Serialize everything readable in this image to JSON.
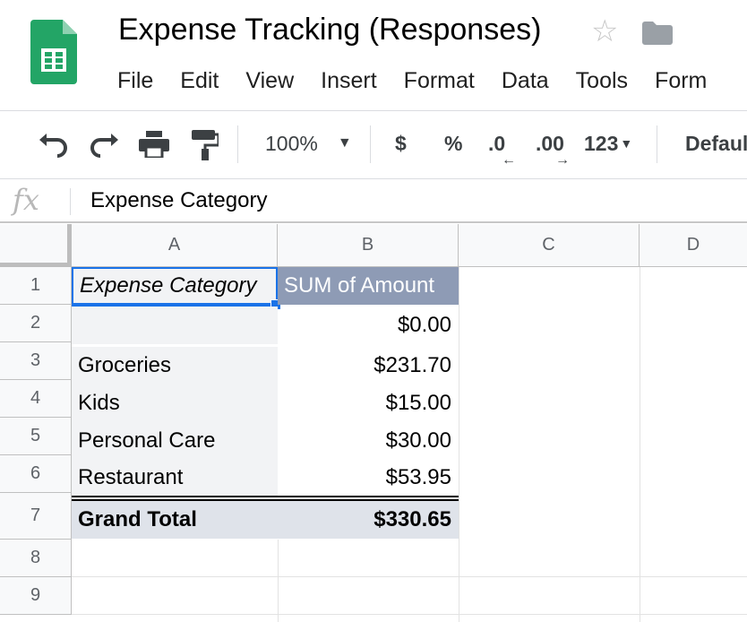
{
  "doc": {
    "title": "Expense Tracking (Responses)"
  },
  "menu": [
    "File",
    "Edit",
    "View",
    "Insert",
    "Format",
    "Data",
    "Tools",
    "Form"
  ],
  "toolbar": {
    "zoom": "100%",
    "currency": "$",
    "percent": "%",
    "dec_decrease": ".0",
    "dec_increase": ".00",
    "more_formats": "123",
    "font": "Default"
  },
  "formula_bar": {
    "fx_label": "fx",
    "value": "Expense Category"
  },
  "columns": [
    "A",
    "B",
    "C",
    "D"
  ],
  "rows": [
    "1",
    "2",
    "3",
    "4",
    "5",
    "6",
    "7",
    "8",
    "9"
  ],
  "pivot": {
    "header": {
      "category": "Expense Category",
      "amount": "SUM of Amount"
    },
    "data": [
      {
        "category": "",
        "amount": "$0.00"
      },
      {
        "category": "Groceries",
        "amount": "$231.70"
      },
      {
        "category": "Kids",
        "amount": "$15.00"
      },
      {
        "category": "Personal Care",
        "amount": "$30.00"
      },
      {
        "category": "Restaurant",
        "amount": "$53.95"
      }
    ],
    "total": {
      "category": "Grand Total",
      "amount": "$330.65"
    }
  },
  "colors": {
    "logo_green": "#23a566",
    "selection_blue": "#1a73e8",
    "pivot_header": "#8e9bb5"
  }
}
